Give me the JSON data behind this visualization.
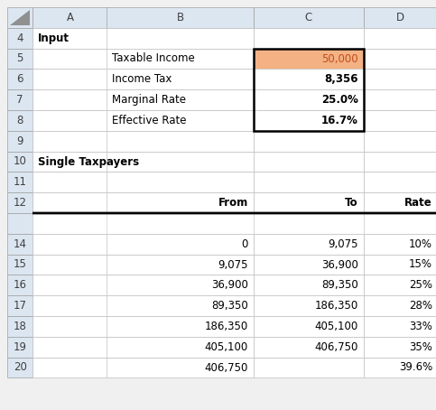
{
  "col_header_labels": [
    "",
    "A",
    "B",
    "C",
    "D"
  ],
  "header_bg": "#dce6f1",
  "orange_bg": "#f4b183",
  "orange_text": "#c05020",
  "cell_bg": "#ffffff",
  "border_thin": "#c0c0c0",
  "border_header": "#a0a0a0",
  "triangle_color": "#909090",
  "rows": [
    {
      "row": "4",
      "A": {
        "text": "Input",
        "bold": true,
        "align": "left"
      },
      "B": {
        "text": "",
        "align": "left"
      },
      "C": {
        "text": "",
        "align": "right"
      },
      "D": {
        "text": "",
        "align": "right"
      }
    },
    {
      "row": "5",
      "A": {
        "text": "",
        "align": "left"
      },
      "B": {
        "text": "Taxable Income",
        "align": "left"
      },
      "C": {
        "text": "50,000",
        "align": "right",
        "bg": "#f4b183",
        "color": "#c05020"
      },
      "D": {
        "text": "",
        "align": "right"
      }
    },
    {
      "row": "6",
      "A": {
        "text": "",
        "align": "left"
      },
      "B": {
        "text": "Income Tax",
        "align": "left"
      },
      "C": {
        "text": "8,356",
        "align": "right",
        "bold": true
      },
      "D": {
        "text": "",
        "align": "right"
      }
    },
    {
      "row": "7",
      "A": {
        "text": "",
        "align": "left"
      },
      "B": {
        "text": "Marginal Rate",
        "align": "left"
      },
      "C": {
        "text": "25.0%",
        "align": "right",
        "bold": true
      },
      "D": {
        "text": "",
        "align": "right"
      }
    },
    {
      "row": "8",
      "A": {
        "text": "",
        "align": "left"
      },
      "B": {
        "text": "Effective Rate",
        "align": "left"
      },
      "C": {
        "text": "16.7%",
        "align": "right",
        "bold": true
      },
      "D": {
        "text": "",
        "align": "right"
      }
    },
    {
      "row": "9",
      "A": {
        "text": "",
        "align": "left"
      },
      "B": {
        "text": "",
        "align": "left"
      },
      "C": {
        "text": "",
        "align": "right"
      },
      "D": {
        "text": "",
        "align": "right"
      }
    },
    {
      "row": "10",
      "A": {
        "text": "Single Taxpayers",
        "bold": true,
        "align": "left"
      },
      "B": {
        "text": "",
        "align": "left"
      },
      "C": {
        "text": "",
        "align": "right"
      },
      "D": {
        "text": "",
        "align": "right"
      }
    },
    {
      "row": "11",
      "A": {
        "text": "",
        "align": "left"
      },
      "B": {
        "text": "",
        "align": "left"
      },
      "C": {
        "text": "",
        "align": "right"
      },
      "D": {
        "text": "",
        "align": "right"
      }
    },
    {
      "row": "12",
      "A": {
        "text": "",
        "align": "left"
      },
      "B": {
        "text": "From",
        "bold": true,
        "align": "right"
      },
      "C": {
        "text": "To",
        "bold": true,
        "align": "right"
      },
      "D": {
        "text": "Rate",
        "bold": true,
        "align": "right"
      },
      "thick_bottom": true
    },
    {
      "row": "",
      "skip": true
    },
    {
      "row": "14",
      "A": {
        "text": "",
        "align": "left"
      },
      "B": {
        "text": "0",
        "align": "right"
      },
      "C": {
        "text": "9,075",
        "align": "right"
      },
      "D": {
        "text": "10%",
        "align": "right"
      }
    },
    {
      "row": "15",
      "A": {
        "text": "",
        "align": "left"
      },
      "B": {
        "text": "9,075",
        "align": "right"
      },
      "C": {
        "text": "36,900",
        "align": "right"
      },
      "D": {
        "text": "15%",
        "align": "right"
      }
    },
    {
      "row": "16",
      "A": {
        "text": "",
        "align": "left"
      },
      "B": {
        "text": "36,900",
        "align": "right"
      },
      "C": {
        "text": "89,350",
        "align": "right"
      },
      "D": {
        "text": "25%",
        "align": "right"
      }
    },
    {
      "row": "17",
      "A": {
        "text": "",
        "align": "left"
      },
      "B": {
        "text": "89,350",
        "align": "right"
      },
      "C": {
        "text": "186,350",
        "align": "right"
      },
      "D": {
        "text": "28%",
        "align": "right"
      }
    },
    {
      "row": "18",
      "A": {
        "text": "",
        "align": "left"
      },
      "B": {
        "text": "186,350",
        "align": "right"
      },
      "C": {
        "text": "405,100",
        "align": "right"
      },
      "D": {
        "text": "33%",
        "align": "right"
      }
    },
    {
      "row": "19",
      "A": {
        "text": "",
        "align": "left"
      },
      "B": {
        "text": "405,100",
        "align": "right"
      },
      "C": {
        "text": "406,750",
        "align": "right"
      },
      "D": {
        "text": "35%",
        "align": "right"
      }
    },
    {
      "row": "20",
      "A": {
        "text": "",
        "align": "left"
      },
      "B": {
        "text": "406,750",
        "align": "right"
      },
      "C": {
        "text": "",
        "align": "right"
      },
      "D": {
        "text": "39.6%",
        "align": "right"
      }
    }
  ]
}
